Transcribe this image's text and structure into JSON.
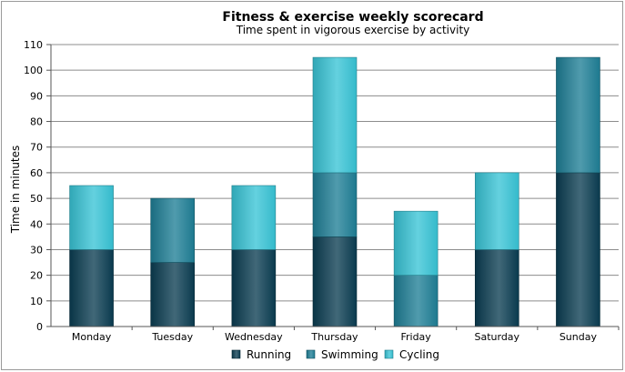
{
  "chart_data": {
    "type": "bar",
    "stacked": true,
    "title": "Fitness & exercise weekly scorecard",
    "subtitle": "Time spent in vigorous exercise by activity",
    "xlabel": "",
    "ylabel": "Time in minutes",
    "ylim": [
      0,
      110
    ],
    "yticks": [
      0,
      10,
      20,
      30,
      40,
      50,
      60,
      70,
      80,
      90,
      100,
      110
    ],
    "grid": true,
    "legend_position": "bottom",
    "categories": [
      "Monday",
      "Tuesday",
      "Wednesday",
      "Thursday",
      "Friday",
      "Saturday",
      "Sunday"
    ],
    "series": [
      {
        "name": "Running",
        "color": "#0b3d52",
        "values": [
          30,
          25,
          30,
          35,
          0,
          30,
          60
        ]
      },
      {
        "name": "Swimming",
        "color": "#1f7f96",
        "values": [
          0,
          25,
          0,
          25,
          20,
          0,
          45
        ]
      },
      {
        "name": "Cycling",
        "color": "#38c4d6",
        "values": [
          25,
          0,
          25,
          45,
          25,
          30,
          0
        ]
      }
    ]
  }
}
